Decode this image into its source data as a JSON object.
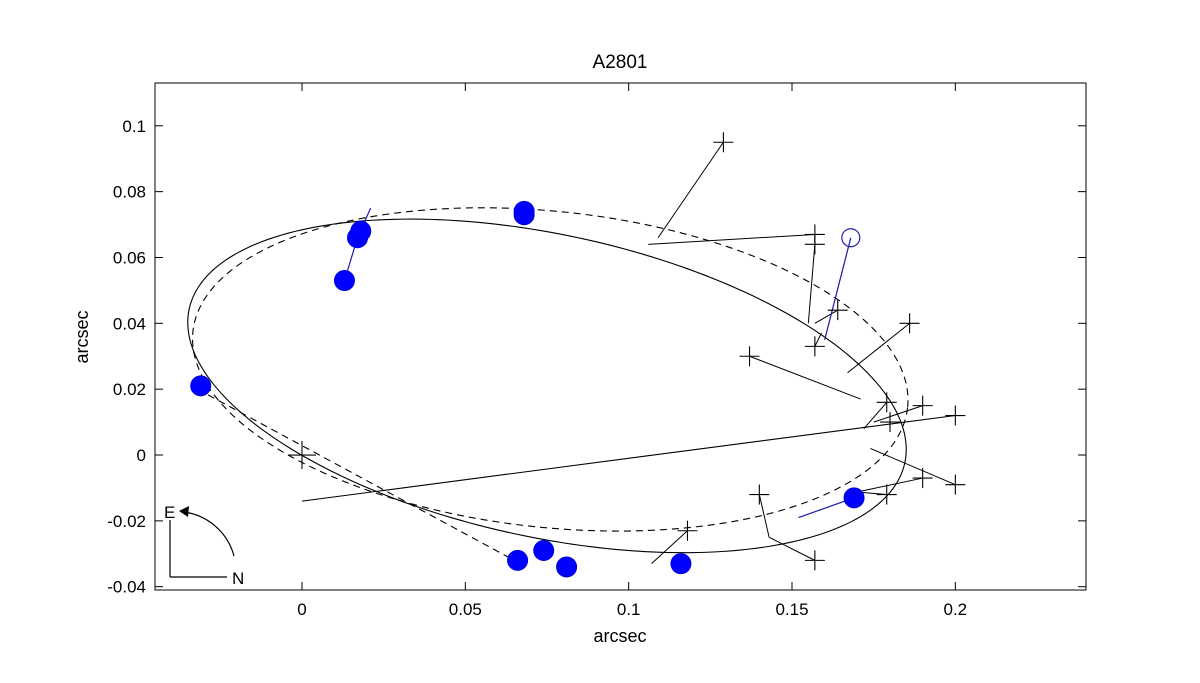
{
  "chart_data": {
    "type": "scatter",
    "title": "A2801",
    "xlabel": "arcsec",
    "ylabel": "arcsec",
    "xlim": [
      -0.045,
      0.24
    ],
    "ylim": [
      -0.041,
      0.113
    ],
    "x_ticks": [
      {
        "value": 0,
        "label": "0"
      },
      {
        "value": 0.05,
        "label": "0.05"
      },
      {
        "value": 0.1,
        "label": "0.1"
      },
      {
        "value": 0.15,
        "label": "0.15"
      },
      {
        "value": 0.2,
        "label": "0.2"
      }
    ],
    "y_ticks": [
      {
        "value": -0.04,
        "label": "-0.04"
      },
      {
        "value": -0.02,
        "label": "-0.02"
      },
      {
        "value": 0,
        "label": "0"
      },
      {
        "value": 0.02,
        "label": "0.02"
      },
      {
        "value": 0.04,
        "label": "0.04"
      },
      {
        "value": 0.06,
        "label": "0.06"
      },
      {
        "value": 0.08,
        "label": "0.08"
      },
      {
        "value": 0.1,
        "label": "0.1"
      }
    ],
    "grid": false,
    "primary_star": {
      "x": 0,
      "y": 0,
      "marker": "plus"
    },
    "orbit_solid": {
      "center": [
        0.075,
        0.021
      ],
      "rx": 0.112,
      "ry": 0.046,
      "rotation_deg": -12
    },
    "orbit_dashed": {
      "center": [
        0.076,
        0.026
      ],
      "rx": 0.11,
      "ry": 0.048,
      "rotation_deg": -6
    },
    "periastron_line": [
      [
        0,
        -0.014
      ],
      [
        0.2,
        0.012
      ]
    ],
    "node_line": [
      [
        -0.032,
        0.02
      ],
      [
        0.065,
        -0.032
      ]
    ],
    "measured_filled": [
      {
        "x": -0.031,
        "y": 0.021
      },
      {
        "x": 0.013,
        "y": 0.053
      },
      {
        "x": 0.017,
        "y": 0.066
      },
      {
        "x": 0.018,
        "y": 0.068
      },
      {
        "x": 0.068,
        "y": 0.073
      },
      {
        "x": 0.068,
        "y": 0.074
      },
      {
        "x": 0.066,
        "y": -0.032
      },
      {
        "x": 0.074,
        "y": -0.029
      },
      {
        "x": 0.081,
        "y": -0.034
      },
      {
        "x": 0.116,
        "y": -0.033
      },
      {
        "x": 0.169,
        "y": -0.013
      }
    ],
    "measured_open": [
      {
        "x": 0.168,
        "y": 0.066
      }
    ],
    "measured_plus": [
      {
        "x": 0.129,
        "y": 0.095
      },
      {
        "x": 0.157,
        "y": 0.067
      },
      {
        "x": 0.157,
        "y": 0.064
      },
      {
        "x": 0.164,
        "y": 0.044
      },
      {
        "x": 0.186,
        "y": 0.04
      },
      {
        "x": 0.137,
        "y": 0.03
      },
      {
        "x": 0.157,
        "y": 0.033
      },
      {
        "x": 0.179,
        "y": 0.016
      },
      {
        "x": 0.19,
        "y": 0.015
      },
      {
        "x": 0.2,
        "y": 0.012
      },
      {
        "x": 0.18,
        "y": 0.01
      },
      {
        "x": 0.2,
        "y": -0.009
      },
      {
        "x": 0.19,
        "y": -0.007
      },
      {
        "x": 0.179,
        "y": -0.012
      },
      {
        "x": 0.14,
        "y": -0.012
      },
      {
        "x": 0.118,
        "y": -0.023
      },
      {
        "x": 0.157,
        "y": -0.032
      }
    ],
    "residual_lines_black": [
      [
        [
          0.129,
          0.095
        ],
        [
          0.109,
          0.066
        ]
      ],
      [
        [
          0.157,
          0.067
        ],
        [
          0.106,
          0.064
        ]
      ],
      [
        [
          0.157,
          0.064
        ],
        [
          0.155,
          0.04
        ]
      ],
      [
        [
          0.164,
          0.044
        ],
        [
          0.157,
          0.04
        ]
      ],
      [
        [
          0.186,
          0.04
        ],
        [
          0.167,
          0.025
        ]
      ],
      [
        [
          0.137,
          0.03
        ],
        [
          0.171,
          0.017
        ]
      ],
      [
        [
          0.157,
          0.033
        ],
        [
          0.159,
          0.037
        ]
      ],
      [
        [
          0.179,
          0.016
        ],
        [
          0.172,
          0.008
        ]
      ],
      [
        [
          0.19,
          0.015
        ],
        [
          0.175,
          0.01
        ]
      ],
      [
        [
          0.18,
          0.01
        ],
        [
          0.18,
          0.01
        ]
      ],
      [
        [
          0.2,
          -0.009
        ],
        [
          0.174,
          0.002
        ]
      ],
      [
        [
          0.19,
          -0.007
        ],
        [
          0.171,
          -0.011
        ]
      ],
      [
        [
          0.179,
          -0.012
        ],
        [
          0.167,
          -0.011
        ]
      ],
      [
        [
          0.14,
          -0.012
        ],
        [
          0.143,
          -0.025
        ]
      ],
      [
        [
          0.157,
          -0.032
        ],
        [
          0.143,
          -0.025
        ]
      ],
      [
        [
          0.118,
          -0.023
        ],
        [
          0.107,
          -0.033
        ]
      ]
    ],
    "residual_lines_blue": [
      [
        [
          0.017,
          0.066
        ],
        [
          0.021,
          0.075
        ]
      ],
      [
        [
          0.013,
          0.053
        ],
        [
          0.017,
          0.066
        ]
      ],
      [
        [
          0.168,
          0.066
        ],
        [
          0.16,
          0.035
        ]
      ],
      [
        [
          0.169,
          -0.013
        ],
        [
          0.152,
          -0.019
        ]
      ]
    ],
    "orientation": {
      "east_label": "E",
      "north_label": "N"
    }
  }
}
